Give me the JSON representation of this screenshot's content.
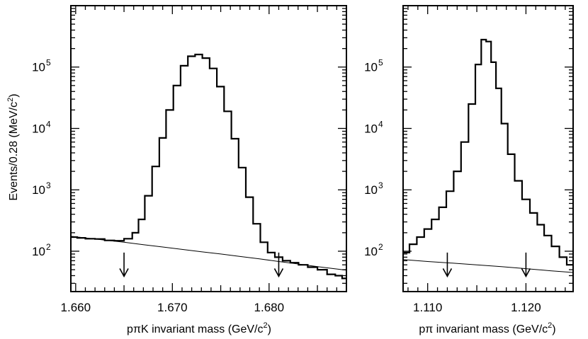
{
  "chart_data": [
    {
      "type": "line",
      "title": "",
      "xlabel_main": "pπK invariant mass (GeV/c",
      "xlabel_sup": "2",
      "xlabel_close": ")",
      "ylabel_main": "Events/0.28 (MeV/c",
      "ylabel_sup": "2",
      "ylabel_close": ")",
      "yscale": "log",
      "xlim": [
        1.6595,
        1.688
      ],
      "ylim": [
        22,
        1000000
      ],
      "xticks": [
        {
          "value": 1.66,
          "label": "1.660"
        },
        {
          "value": 1.67,
          "label": "1.670"
        },
        {
          "value": 1.68,
          "label": "1.680"
        }
      ],
      "yticks": [
        {
          "value": 100,
          "base": "10",
          "exp": "2"
        },
        {
          "value": 1000,
          "base": "10",
          "exp": "3"
        },
        {
          "value": 10000,
          "base": "10",
          "exp": "4"
        },
        {
          "value": 100000,
          "base": "10",
          "exp": "5"
        }
      ],
      "series": [
        {
          "style": "histogram",
          "x": [
            1.6598,
            1.6605,
            1.6615,
            1.6625,
            1.6635,
            1.6645,
            1.6655,
            1.6662,
            1.6668,
            1.6675,
            1.6683,
            1.669,
            1.6697,
            1.6705,
            1.6712,
            1.672,
            1.6727,
            1.6735,
            1.6742,
            1.675,
            1.6757,
            1.6765,
            1.6772,
            1.678,
            1.6787,
            1.6795,
            1.6802,
            1.681,
            1.6818,
            1.6826,
            1.6835,
            1.6845,
            1.6855,
            1.6865,
            1.6872,
            1.6879
          ],
          "y": [
            170,
            165,
            160,
            158,
            150,
            148,
            160,
            200,
            330,
            800,
            2400,
            7000,
            20000,
            50000,
            105000,
            150000,
            160000,
            140000,
            95000,
            48000,
            19000,
            6800,
            2300,
            760,
            280,
            140,
            95,
            80,
            70,
            65,
            60,
            55,
            50,
            42,
            40,
            36
          ]
        },
        {
          "style": "curve",
          "x": [
            1.6595,
            1.661,
            1.663,
            1.665,
            1.667,
            1.669,
            1.671,
            1.673,
            1.675,
            1.677,
            1.679,
            1.681,
            1.683,
            1.685,
            1.688
          ],
          "y": [
            175,
            165,
            152,
            140,
            128,
            117,
            107,
            98,
            90,
            82,
            75,
            68,
            62,
            56,
            49
          ]
        }
      ],
      "annotations": [
        {
          "type": "arrow_down",
          "x": 1.665,
          "y_top": 95,
          "y_bottom": 39
        },
        {
          "type": "arrow_down",
          "x": 1.681,
          "y_top": 95,
          "y_bottom": 39
        }
      ]
    },
    {
      "type": "line",
      "title": "",
      "xlabel_main": "pπ invariant mass (GeV/c",
      "xlabel_sup": "2",
      "xlabel_close": ")",
      "yscale": "log",
      "xlim": [
        1.1075,
        1.1248
      ],
      "ylim": [
        22,
        1000000
      ],
      "xticks": [
        {
          "value": 1.11,
          "label": "1.110"
        },
        {
          "value": 1.12,
          "label": "1.120"
        }
      ],
      "yticks": [
        {
          "value": 100,
          "base": "10",
          "exp": "2"
        },
        {
          "value": 1000,
          "base": "10",
          "exp": "3"
        },
        {
          "value": 10000,
          "base": "10",
          "exp": "4"
        },
        {
          "value": 100000,
          "base": "10",
          "exp": "5"
        }
      ],
      "series": [
        {
          "style": "histogram",
          "x": [
            1.1078,
            1.1085,
            1.1093,
            1.11,
            1.1108,
            1.1115,
            1.1123,
            1.113,
            1.1138,
            1.1145,
            1.1152,
            1.1157,
            1.1162,
            1.1167,
            1.1172,
            1.1178,
            1.1185,
            1.1192,
            1.12,
            1.1208,
            1.1215,
            1.1222,
            1.123,
            1.1238,
            1.1245
          ],
          "y": [
            95,
            130,
            170,
            230,
            330,
            520,
            950,
            2000,
            6000,
            25000,
            110000,
            280000,
            260000,
            120000,
            45000,
            12000,
            3800,
            1400,
            700,
            420,
            270,
            180,
            120,
            80,
            60
          ]
        },
        {
          "style": "curve",
          "x": [
            1.1075,
            1.11,
            1.1125,
            1.115,
            1.1175,
            1.12,
            1.1225,
            1.1248
          ],
          "y": [
            73,
            68,
            64,
            60,
            56,
            52,
            48,
            45
          ]
        }
      ],
      "annotations": [
        {
          "type": "arrow_down",
          "x": 1.112,
          "y_top": 95,
          "y_bottom": 39
        },
        {
          "type": "arrow_down",
          "x": 1.12,
          "y_top": 95,
          "y_bottom": 39
        }
      ]
    }
  ]
}
